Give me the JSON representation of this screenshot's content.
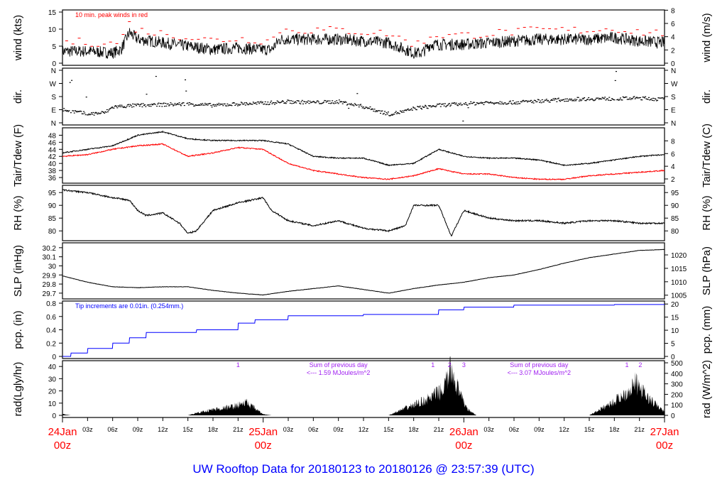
{
  "title": "UW Rooftop Data for 20180123  to  20180126 @ 23:57:39  (UTC)",
  "colors": {
    "title": "#0000ff",
    "day": "#ff0000",
    "peak": "#ff0000",
    "dew": "#ff0000",
    "pcp": "#0000ff",
    "note": "#a020f0"
  },
  "chart_data": [
    {
      "type": "line",
      "name": "wind",
      "ylabel": "wind (kts)",
      "ylabel_right": "wind (m/s)",
      "ylim": [
        0,
        15
      ],
      "yticks": [
        0,
        5,
        10,
        15
      ],
      "rticks": [
        0,
        2,
        4,
        6,
        8
      ],
      "rlim_factor": 0.5144,
      "annotation": "10 min. peak winds in red",
      "series": [
        {
          "name": "wind",
          "points": [
            [
              0,
              3.5
            ],
            [
              3,
              3.5
            ],
            [
              6,
              3
            ],
            [
              7,
              4
            ],
            [
              8,
              9
            ],
            [
              9,
              7
            ],
            [
              12,
              6
            ],
            [
              15,
              5
            ],
            [
              18,
              4
            ],
            [
              21,
              4.5
            ],
            [
              24,
              4
            ],
            [
              25,
              4
            ],
            [
              26,
              7
            ],
            [
              30,
              7
            ],
            [
              33,
              7
            ],
            [
              36,
              6.5
            ],
            [
              39,
              6
            ],
            [
              42,
              3
            ],
            [
              43,
              3
            ],
            [
              44,
              5.5
            ],
            [
              48,
              5.5
            ],
            [
              51,
              6
            ],
            [
              54,
              6.5
            ],
            [
              57,
              7
            ],
            [
              60,
              7
            ],
            [
              63,
              7
            ],
            [
              66,
              7.5
            ],
            [
              69,
              6.5
            ],
            [
              72,
              6
            ]
          ]
        }
      ],
      "peak_offset": 3
    },
    {
      "type": "scatter",
      "name": "dir",
      "ylabel": "dir.",
      "ylabel_right": "dir.",
      "ylim": [
        0,
        360
      ],
      "ytick_labels": [
        "N",
        "E",
        "S",
        "W",
        "N"
      ],
      "series": [
        {
          "name": "direction",
          "points": [
            [
              0,
              90
            ],
            [
              3,
              60
            ],
            [
              5,
              70
            ],
            [
              6,
              110
            ],
            [
              9,
              120
            ],
            [
              12,
              125
            ],
            [
              15,
              130
            ],
            [
              18,
              120
            ],
            [
              21,
              130
            ],
            [
              24,
              135
            ],
            [
              27,
              145
            ],
            [
              30,
              140
            ],
            [
              33,
              145
            ],
            [
              36,
              110
            ],
            [
              39,
              60
            ],
            [
              41,
              80
            ],
            [
              42,
              100
            ],
            [
              45,
              120
            ],
            [
              48,
              130
            ],
            [
              51,
              140
            ],
            [
              54,
              140
            ],
            [
              57,
              150
            ],
            [
              60,
              160
            ],
            [
              63,
              165
            ],
            [
              66,
              165
            ],
            [
              69,
              170
            ],
            [
              72,
              160
            ]
          ]
        }
      ]
    },
    {
      "type": "line",
      "name": "temp",
      "ylabel": "Tair/Tdew (F)",
      "ylabel_right": "Tair/Tdew (C)",
      "ylim": [
        35,
        49.5
      ],
      "yticks": [
        36,
        38,
        40,
        42,
        44,
        46,
        48
      ],
      "rticks": [
        2,
        4,
        6,
        8
      ],
      "series": [
        {
          "name": "Tair",
          "points": [
            [
              0,
              43
            ],
            [
              3,
              44
            ],
            [
              6,
              45
            ],
            [
              9,
              48
            ],
            [
              12,
              49
            ],
            [
              15,
              47
            ],
            [
              18,
              46.5
            ],
            [
              21,
              46.5
            ],
            [
              24,
              46.5
            ],
            [
              27,
              45.5
            ],
            [
              30,
              42
            ],
            [
              33,
              41.5
            ],
            [
              36,
              41.5
            ],
            [
              39,
              39.5
            ],
            [
              42,
              40
            ],
            [
              45,
              44
            ],
            [
              48,
              42
            ],
            [
              51,
              41.5
            ],
            [
              54,
              41.5
            ],
            [
              57,
              41
            ],
            [
              60,
              39.5
            ],
            [
              63,
              40
            ],
            [
              66,
              41
            ],
            [
              69,
              42
            ],
            [
              72,
              42.5
            ]
          ]
        },
        {
          "name": "Tdew",
          "points": [
            [
              0,
              42
            ],
            [
              3,
              42.5
            ],
            [
              6,
              44
            ],
            [
              9,
              45
            ],
            [
              12,
              45.5
            ],
            [
              15,
              42
            ],
            [
              18,
              43
            ],
            [
              21,
              44.5
            ],
            [
              24,
              44
            ],
            [
              27,
              40
            ],
            [
              30,
              38
            ],
            [
              33,
              37
            ],
            [
              36,
              36
            ],
            [
              39,
              35.5
            ],
            [
              42,
              36.5
            ],
            [
              45,
              38.5
            ],
            [
              48,
              37
            ],
            [
              51,
              37
            ],
            [
              54,
              36
            ],
            [
              57,
              35.5
            ],
            [
              60,
              35.5
            ],
            [
              63,
              36.5
            ],
            [
              66,
              37
            ],
            [
              69,
              37.5
            ],
            [
              72,
              38
            ]
          ]
        }
      ]
    },
    {
      "type": "line",
      "name": "rh",
      "ylabel": "RH (%)",
      "ylabel_right": "RH (%)",
      "ylim": [
        77,
        97
      ],
      "yticks": [
        80,
        85,
        90,
        95
      ],
      "rticks": [
        80,
        85,
        90,
        95
      ],
      "series": [
        {
          "name": "RH",
          "points": [
            [
              0,
              96
            ],
            [
              3,
              95
            ],
            [
              6,
              93
            ],
            [
              8,
              92
            ],
            [
              9,
              88
            ],
            [
              10,
              86
            ],
            [
              12,
              87
            ],
            [
              14,
              83
            ],
            [
              15,
              79
            ],
            [
              16,
              80
            ],
            [
              18,
              88
            ],
            [
              21,
              91
            ],
            [
              24,
              93
            ],
            [
              25,
              88
            ],
            [
              27,
              84
            ],
            [
              30,
              82
            ],
            [
              33,
              84
            ],
            [
              36,
              81
            ],
            [
              39,
              80
            ],
            [
              41,
              82
            ],
            [
              42,
              90
            ],
            [
              45,
              90
            ],
            [
              46,
              82
            ],
            [
              46.5,
              78
            ],
            [
              48,
              88
            ],
            [
              51,
              85
            ],
            [
              54,
              84
            ],
            [
              57,
              84
            ],
            [
              60,
              83
            ],
            [
              63,
              84
            ],
            [
              66,
              84
            ],
            [
              69,
              83
            ],
            [
              72,
              83
            ]
          ]
        }
      ]
    },
    {
      "type": "line",
      "name": "slp",
      "ylabel": "SLP (inHg)",
      "ylabel_right": "SLP (hPa)",
      "ylim": [
        29.66,
        30.23
      ],
      "yticks": [
        29.7,
        29.8,
        29.9,
        30.0,
        30.1,
        30.2
      ],
      "rticks": [
        1005,
        1010,
        1015,
        1020
      ],
      "series": [
        {
          "name": "SLP",
          "points": [
            [
              0,
              29.89
            ],
            [
              3,
              29.82
            ],
            [
              6,
              29.77
            ],
            [
              9,
              29.76
            ],
            [
              12,
              29.77
            ],
            [
              15,
              29.77
            ],
            [
              18,
              29.73
            ],
            [
              21,
              29.7
            ],
            [
              24,
              29.68
            ],
            [
              27,
              29.72
            ],
            [
              30,
              29.75
            ],
            [
              33,
              29.78
            ],
            [
              36,
              29.74
            ],
            [
              39,
              29.7
            ],
            [
              42,
              29.75
            ],
            [
              45,
              29.79
            ],
            [
              48,
              29.82
            ],
            [
              51,
              29.87
            ],
            [
              54,
              29.9
            ],
            [
              57,
              29.96
            ],
            [
              60,
              30.03
            ],
            [
              63,
              30.09
            ],
            [
              66,
              30.13
            ],
            [
              69,
              30.17
            ],
            [
              72,
              30.18
            ]
          ]
        }
      ]
    },
    {
      "type": "line",
      "name": "pcp",
      "ylabel": "pcp. (in)",
      "ylabel_right": "pcp. (mm)",
      "ylim": [
        0,
        0.8
      ],
      "yticks": [
        0,
        0.2,
        0.4,
        0.6,
        0.8
      ],
      "rticks": [
        0,
        5,
        10,
        15,
        20
      ],
      "annotation": "Tip increments are 0.01in. (0.254mm.)",
      "series": [
        {
          "name": "precip",
          "points": [
            [
              0,
              0
            ],
            [
              1,
              0.05
            ],
            [
              3,
              0.12
            ],
            [
              6,
              0.2
            ],
            [
              8,
              0.28
            ],
            [
              10,
              0.36
            ],
            [
              16,
              0.4
            ],
            [
              21,
              0.5
            ],
            [
              23,
              0.55
            ],
            [
              27,
              0.61
            ],
            [
              36,
              0.63
            ],
            [
              42,
              0.63
            ],
            [
              45,
              0.7
            ],
            [
              48,
              0.74
            ],
            [
              54,
              0.77
            ],
            [
              66,
              0.78
            ],
            [
              72,
              0.78
            ]
          ]
        }
      ]
    },
    {
      "type": "area",
      "name": "rad",
      "ylabel": "rad(Lgly/hr)",
      "ylabel_right": "rad (W/m^2)",
      "ylim": [
        0,
        43
      ],
      "yticks": [
        0,
        10,
        20,
        30,
        40
      ],
      "rticks": [
        0,
        100,
        200,
        300,
        400,
        500
      ],
      "series": [
        {
          "name": "radiation",
          "points": [
            [
              0,
              1
            ],
            [
              1,
              0
            ],
            [
              15,
              0
            ],
            [
              16,
              2
            ],
            [
              18,
              5
            ],
            [
              20,
              7
            ],
            [
              22,
              11
            ],
            [
              23,
              6
            ],
            [
              24,
              1
            ],
            [
              25,
              0
            ],
            [
              39,
              0
            ],
            [
              40,
              3
            ],
            [
              42,
              9
            ],
            [
              44,
              15
            ],
            [
              45.5,
              22
            ],
            [
              46.5,
              40
            ],
            [
              47.5,
              18
            ],
            [
              48.5,
              5
            ],
            [
              49.5,
              0
            ],
            [
              63,
              0
            ],
            [
              64,
              4
            ],
            [
              66,
              12
            ],
            [
              67.5,
              20
            ],
            [
              68.5,
              28
            ],
            [
              70,
              15
            ],
            [
              71.5,
              6
            ],
            [
              72,
              3
            ]
          ]
        }
      ],
      "marks": [
        {
          "h": 21,
          "t": "1"
        },
        {
          "h": 44.3,
          "t": "1"
        },
        {
          "h": 46.3,
          "t": "2"
        },
        {
          "h": 48,
          "t": "3"
        },
        {
          "h": 67.5,
          "t": "1"
        },
        {
          "h": 69.1,
          "t": "2"
        }
      ],
      "sums": [
        {
          "h": 33,
          "l1": "Sum of previous day",
          "l2": "<--- 1.59 MJoules/m^2"
        },
        {
          "h": 57,
          "l1": "Sum of previous day",
          "l2": "<--- 3.07 MJoules/m^2"
        }
      ]
    }
  ],
  "xaxis": {
    "hours": 72,
    "hour_labels": [
      "03z",
      "06z",
      "09z",
      "12z",
      "15z",
      "18z",
      "21z"
    ],
    "days": [
      {
        "d": "24Jan",
        "z": "00z"
      },
      {
        "d": "25Jan",
        "z": "00z"
      },
      {
        "d": "26Jan",
        "z": "00z"
      },
      {
        "d": "27Jan",
        "z": "00z"
      }
    ]
  }
}
